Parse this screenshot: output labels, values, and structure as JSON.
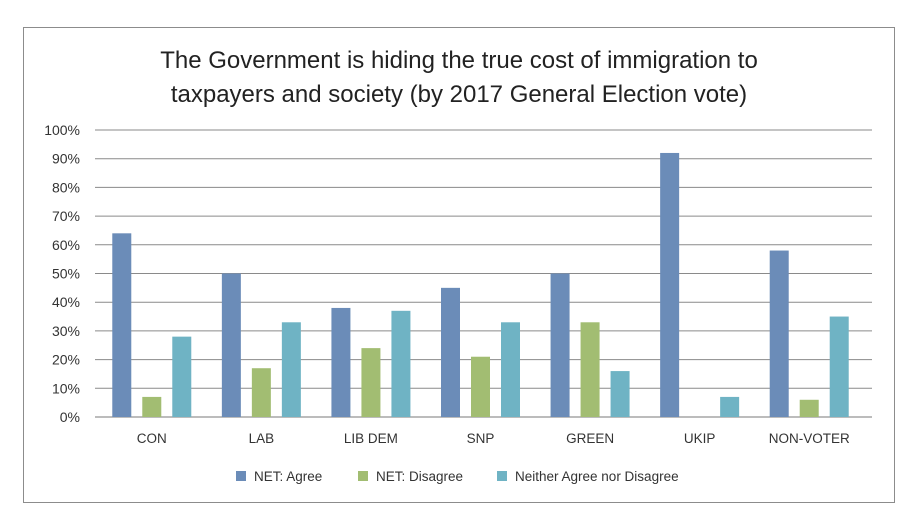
{
  "chart_data": {
    "type": "bar",
    "title_lines": [
      "The Government is hiding the true cost of immigration to",
      "taxpayers and society (by 2017 General Election vote)"
    ],
    "xlabel": "",
    "ylabel": "",
    "ylim": [
      0,
      100
    ],
    "yticks": [
      0,
      10,
      20,
      30,
      40,
      50,
      60,
      70,
      80,
      90,
      100
    ],
    "ytick_labels": [
      "0%",
      "10%",
      "20%",
      "30%",
      "40%",
      "50%",
      "60%",
      "70%",
      "80%",
      "90%",
      "100%"
    ],
    "grid": true,
    "legend_position": "bottom",
    "categories": [
      "CON",
      "LAB",
      "LIB DEM",
      "SNP",
      "GREEN",
      "UKIP",
      "NON-VOTER"
    ],
    "series": [
      {
        "name": "NET: Agree",
        "color": "#6b8cb8",
        "values": [
          64,
          50,
          38,
          45,
          50,
          92,
          58
        ]
      },
      {
        "name": "NET: Disagree",
        "color": "#a2bd72",
        "values": [
          7,
          17,
          24,
          21,
          33,
          0,
          6
        ]
      },
      {
        "name": "Neither Agree nor Disagree",
        "color": "#6fb3c4",
        "values": [
          28,
          33,
          37,
          33,
          16,
          7,
          35
        ]
      }
    ]
  }
}
